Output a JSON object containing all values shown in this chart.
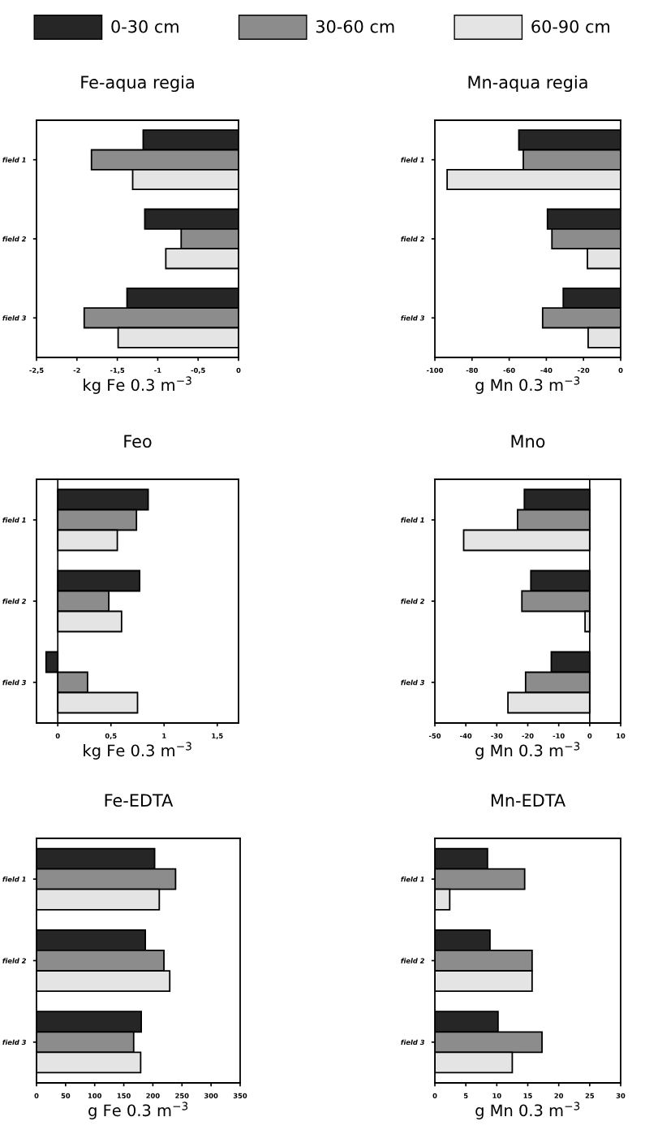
{
  "chart_data": [
    {
      "type": "bar",
      "orientation": "horizontal",
      "title": "Fe-aqua regia",
      "xlabel": "kg Fe 0.3 m$^{−3}$",
      "legend": "top",
      "categories": [
        "field 1",
        "field 2",
        "field 3"
      ],
      "xlim": [
        -2.5,
        0
      ],
      "xticks": [
        {
          "value": -2.5,
          "label": "-2,5"
        },
        -2,
        {
          "value": -1.5,
          "label": "-1,5"
        },
        -1,
        {
          "value": -0.5,
          "label": "-0,5"
        },
        0
      ],
      "series": [
        {
          "name": "0-30 cm",
          "color": "#262626",
          "values": [
            -1.18,
            -1.16,
            -1.38
          ]
        },
        {
          "name": "30-60 cm",
          "color": "#8c8c8c",
          "values": [
            -1.82,
            -0.71,
            -1.91
          ]
        },
        {
          "name": "60-90 cm",
          "color": "#e4e4e4",
          "values": [
            -1.31,
            -0.9,
            -1.49
          ]
        }
      ]
    },
    {
      "type": "bar",
      "orientation": "horizontal",
      "title": "Mn-aqua regia",
      "xlabel": "g Mn 0.3 m$^{−3}$",
      "categories": [
        "field 1",
        "field 2",
        "field 3"
      ],
      "xlim": [
        -100,
        0
      ],
      "xticks": [
        -100,
        -80,
        -60,
        -40,
        -20,
        0
      ],
      "series": [
        {
          "color": "#262626",
          "values": [
            -54.8,
            -39.4,
            -30.9
          ]
        },
        {
          "color": "#8c8c8c",
          "values": [
            -52.4,
            -37.0,
            -42.0
          ]
        },
        {
          "color": "#e4e4e4",
          "values": [
            -93.4,
            -17.9,
            -17.5
          ]
        }
      ]
    },
    {
      "type": "bar",
      "orientation": "horizontal",
      "title": "Feo",
      "xlabel": "kg Fe 0.3 m$^{−3}$",
      "categories": [
        "field 1",
        "field 2",
        "field 3"
      ],
      "xlim": [
        -0.2,
        1.7
      ],
      "xticks": [
        0,
        {
          "value": 0.5,
          "label": "0,5"
        },
        1,
        {
          "value": 1.5,
          "label": "1,5"
        }
      ],
      "series": [
        {
          "color": "#262626",
          "values": [
            0.85,
            0.77,
            -0.11
          ]
        },
        {
          "color": "#8c8c8c",
          "values": [
            0.74,
            0.48,
            0.28
          ]
        },
        {
          "color": "#e4e4e4",
          "values": [
            0.56,
            0.6,
            0.75
          ]
        }
      ]
    },
    {
      "type": "bar",
      "orientation": "horizontal",
      "title": "Mno",
      "xlabel": "g Mn 0.3 m$^{−3}$",
      "categories": [
        "field 1",
        "field 2",
        "field 3"
      ],
      "xlim": [
        -50,
        10
      ],
      "xticks": [
        -50,
        -40,
        -30,
        -20,
        -10,
        0,
        10
      ],
      "series": [
        {
          "color": "#262626",
          "values": [
            -21.1,
            -19.0,
            -12.4
          ]
        },
        {
          "color": "#8c8c8c",
          "values": [
            -23.3,
            -21.9,
            -20.7
          ]
        },
        {
          "color": "#e4e4e4",
          "values": [
            -40.7,
            -1.5,
            -26.4
          ]
        }
      ]
    },
    {
      "type": "bar",
      "orientation": "horizontal",
      "title": "Fe-EDTA",
      "xlabel": "g Fe 0.3 m$^{−3}$",
      "categories": [
        "field 1",
        "field 2",
        "field 3"
      ],
      "xlim": [
        0,
        350
      ],
      "xticks": [
        0,
        50,
        100,
        150,
        200,
        250,
        300,
        350
      ],
      "series": [
        {
          "color": "#262626",
          "values": [
            203,
            187,
            180
          ]
        },
        {
          "color": "#8c8c8c",
          "values": [
            239,
            219,
            167
          ]
        },
        {
          "color": "#e4e4e4",
          "values": [
            211,
            229,
            179
          ]
        }
      ]
    },
    {
      "type": "bar",
      "orientation": "horizontal",
      "title": "Mn-EDTA",
      "xlabel": "g Mn 0.3 m$^{−3}$",
      "categories": [
        "field 1",
        "field 2",
        "field 3"
      ],
      "xlim": [
        0,
        30
      ],
      "xticks": [
        0,
        5,
        10,
        15,
        20,
        25,
        30
      ],
      "series": [
        {
          "color": "#262626",
          "values": [
            8.5,
            8.9,
            10.2
          ]
        },
        {
          "color": "#8c8c8c",
          "values": [
            14.5,
            15.7,
            17.3
          ]
        },
        {
          "color": "#e4e4e4",
          "values": [
            2.4,
            15.7,
            12.5
          ]
        }
      ]
    }
  ]
}
